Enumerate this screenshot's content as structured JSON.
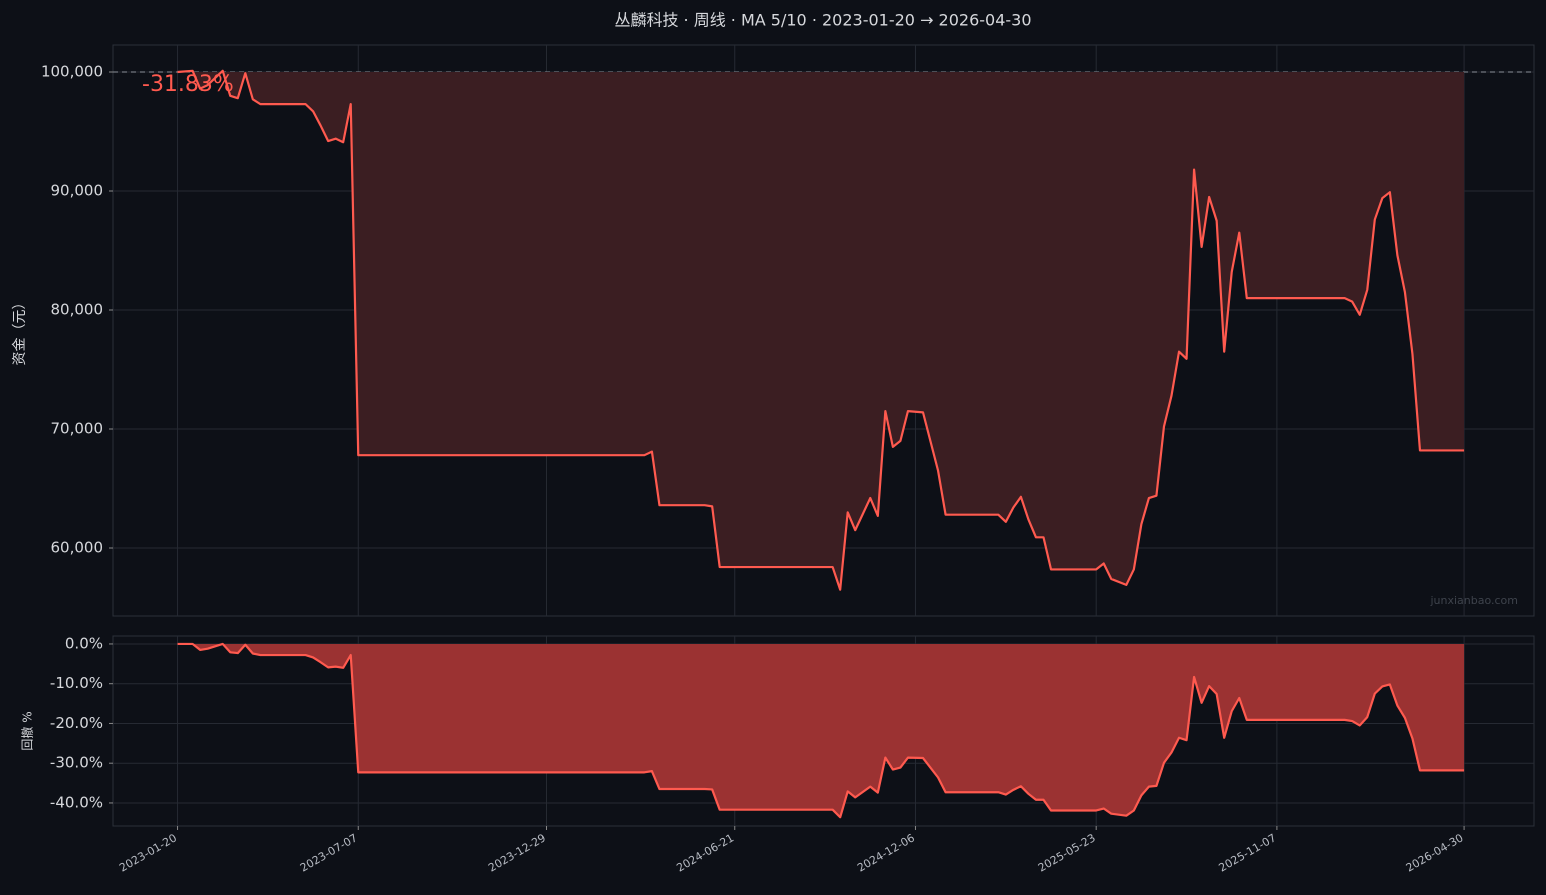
{
  "chart_data": [
    {
      "type": "line",
      "title": "丛麟科技 · 周线 · MA 5/10 · 2023-01-20 → 2026-04-30",
      "ylabel": "资金（元）",
      "annotation": "-31.83%",
      "watermark": "junxianbao.com",
      "x": [
        "2023-01-20",
        "2023-02-03",
        "2023-02-10",
        "2023-02-17",
        "2023-03-03",
        "2023-03-10",
        "2023-03-17",
        "2023-03-24",
        "2023-03-31",
        "2023-04-07",
        "2023-05-19",
        "2023-05-26",
        "2023-06-02",
        "2023-06-09",
        "2023-06-16",
        "2023-06-23",
        "2023-06-30",
        "2023-07-07",
        "2024-03-29",
        "2024-04-05",
        "2024-04-12",
        "2024-05-24",
        "2024-05-31",
        "2024-06-07",
        "2024-09-20",
        "2024-09-27",
        "2024-10-04",
        "2024-10-11",
        "2024-10-25",
        "2024-11-01",
        "2024-11-08",
        "2024-11-15",
        "2024-11-22",
        "2024-11-29",
        "2024-12-13",
        "2024-12-27",
        "2025-01-03",
        "2025-02-21",
        "2025-02-28",
        "2025-03-07",
        "2025-03-14",
        "2025-03-21",
        "2025-03-28",
        "2025-04-04",
        "2025-04-11",
        "2025-05-23",
        "2025-05-30",
        "2025-06-06",
        "2025-06-20",
        "2025-06-27",
        "2025-07-04",
        "2025-07-11",
        "2025-07-18",
        "2025-07-25",
        "2025-08-01",
        "2025-08-08",
        "2025-08-15",
        "2025-08-22",
        "2025-08-29",
        "2025-09-05",
        "2025-09-12",
        "2025-09-19",
        "2025-09-26",
        "2025-10-03",
        "2025-10-10",
        "2026-01-09",
        "2026-01-16",
        "2026-01-23",
        "2026-01-30",
        "2026-02-06",
        "2026-02-13",
        "2026-02-20",
        "2026-02-27",
        "2026-03-06",
        "2026-03-13",
        "2026-03-20",
        "2026-04-30"
      ],
      "series": [
        {
          "color": "#ff5a4f",
          "fill": "#3b1e22",
          "values": [
            100000,
            100100,
            98600,
            98900,
            100100,
            98000,
            97800,
            99900,
            97700,
            97300,
            97300,
            96700,
            95500,
            94200,
            94400,
            94100,
            97300,
            67800,
            67800,
            68100,
            63600,
            63600,
            63500,
            58400,
            58400,
            56500,
            63000,
            61500,
            64200,
            62700,
            71500,
            68500,
            69000,
            71500,
            71400,
            66500,
            62800,
            62800,
            62200,
            63400,
            64300,
            62400,
            60900,
            60900,
            58200,
            58200,
            58700,
            57400,
            56900,
            58200,
            62000,
            64200,
            64400,
            70200,
            72800,
            76500,
            75900,
            91800,
            85300,
            89500,
            87500,
            76500,
            83200,
            86500,
            81000,
            81000,
            80700,
            79600,
            81700,
            87600,
            89400,
            89900,
            84600,
            81500,
            76300,
            68200,
            68200
          ]
        }
      ],
      "baseline": 100000,
      "xlim": [
        "2022-11-21",
        "2026-07-04"
      ],
      "xticks": [
        "2023-01-20",
        "2023-07-07",
        "2023-12-29",
        "2024-06-21",
        "2024-12-06",
        "2025-05-23",
        "2025-11-07",
        "2026-04-30"
      ],
      "ylim": [
        54286,
        102269
      ],
      "yticks": [
        {
          "value": 60000,
          "label": "60,000"
        },
        {
          "value": 70000,
          "label": "70,000"
        },
        {
          "value": 80000,
          "label": "80,000"
        },
        {
          "value": 90000,
          "label": "90,000"
        },
        {
          "value": 100000,
          "label": "100,000"
        }
      ],
      "grid": true
    },
    {
      "type": "area",
      "ylabel": "回撤 %",
      "x": [
        "2023-01-20",
        "2023-02-03",
        "2023-02-10",
        "2023-02-17",
        "2023-03-03",
        "2023-03-10",
        "2023-03-17",
        "2023-03-24",
        "2023-03-31",
        "2023-04-07",
        "2023-05-19",
        "2023-05-26",
        "2023-06-02",
        "2023-06-09",
        "2023-06-16",
        "2023-06-23",
        "2023-06-30",
        "2023-07-07",
        "2024-03-29",
        "2024-04-05",
        "2024-04-12",
        "2024-05-24",
        "2024-05-31",
        "2024-06-07",
        "2024-09-20",
        "2024-09-27",
        "2024-10-04",
        "2024-10-11",
        "2024-10-25",
        "2024-11-01",
        "2024-11-08",
        "2024-11-15",
        "2024-11-22",
        "2024-11-29",
        "2024-12-13",
        "2024-12-27",
        "2025-01-03",
        "2025-02-21",
        "2025-02-28",
        "2025-03-07",
        "2025-03-14",
        "2025-03-21",
        "2025-03-28",
        "2025-04-04",
        "2025-04-11",
        "2025-05-23",
        "2025-05-30",
        "2025-06-06",
        "2025-06-20",
        "2025-06-27",
        "2025-07-04",
        "2025-07-11",
        "2025-07-18",
        "2025-07-25",
        "2025-08-01",
        "2025-08-08",
        "2025-08-15",
        "2025-08-22",
        "2025-08-29",
        "2025-09-05",
        "2025-09-12",
        "2025-09-19",
        "2025-09-26",
        "2025-10-03",
        "2025-10-10",
        "2026-01-09",
        "2026-01-16",
        "2026-01-23",
        "2026-01-30",
        "2026-02-06",
        "2026-02-13",
        "2026-02-20",
        "2026-02-27",
        "2026-03-06",
        "2026-03-13",
        "2026-03-20",
        "2026-04-30"
      ],
      "series": [
        {
          "color": "#ff5a4f",
          "fill": "#9b3232",
          "values": [
            0,
            0,
            -1.5,
            -1.2,
            0,
            -2.1,
            -2.3,
            -0.2,
            -2.4,
            -2.8,
            -2.8,
            -3.4,
            -4.6,
            -5.9,
            -5.7,
            -6.0,
            -2.8,
            -32.3,
            -32.3,
            -32.0,
            -36.5,
            -36.5,
            -36.6,
            -41.7,
            -41.7,
            -43.6,
            -37.1,
            -38.6,
            -35.9,
            -37.4,
            -28.6,
            -31.6,
            -31.1,
            -28.6,
            -28.7,
            -33.6,
            -37.3,
            -37.3,
            -37.9,
            -36.7,
            -35.8,
            -37.7,
            -39.2,
            -39.2,
            -41.9,
            -41.9,
            -41.4,
            -42.7,
            -43.2,
            -41.9,
            -38.1,
            -35.9,
            -35.7,
            -29.9,
            -27.3,
            -23.6,
            -24.2,
            -8.3,
            -14.8,
            -10.6,
            -12.6,
            -23.6,
            -16.9,
            -13.6,
            -19.1,
            -19.1,
            -19.4,
            -20.5,
            -18.4,
            -12.5,
            -10.7,
            -10.2,
            -15.5,
            -18.6,
            -23.8,
            -31.8,
            -31.8
          ]
        }
      ],
      "xlim": [
        "2022-11-21",
        "2026-07-04"
      ],
      "xticks": [
        "2023-01-20",
        "2023-07-07",
        "2023-12-29",
        "2024-06-21",
        "2024-12-06",
        "2025-05-23",
        "2025-11-07",
        "2026-04-30"
      ],
      "ylim": [
        -45.8,
        2.0
      ],
      "yticks": [
        {
          "value": -40,
          "label": "-40.0%"
        },
        {
          "value": -30,
          "label": "-30.0%"
        },
        {
          "value": -20,
          "label": "-20.0%"
        },
        {
          "value": -10,
          "label": "-10.0%"
        },
        {
          "value": 0,
          "label": "0.0%"
        }
      ],
      "grid": true
    }
  ]
}
